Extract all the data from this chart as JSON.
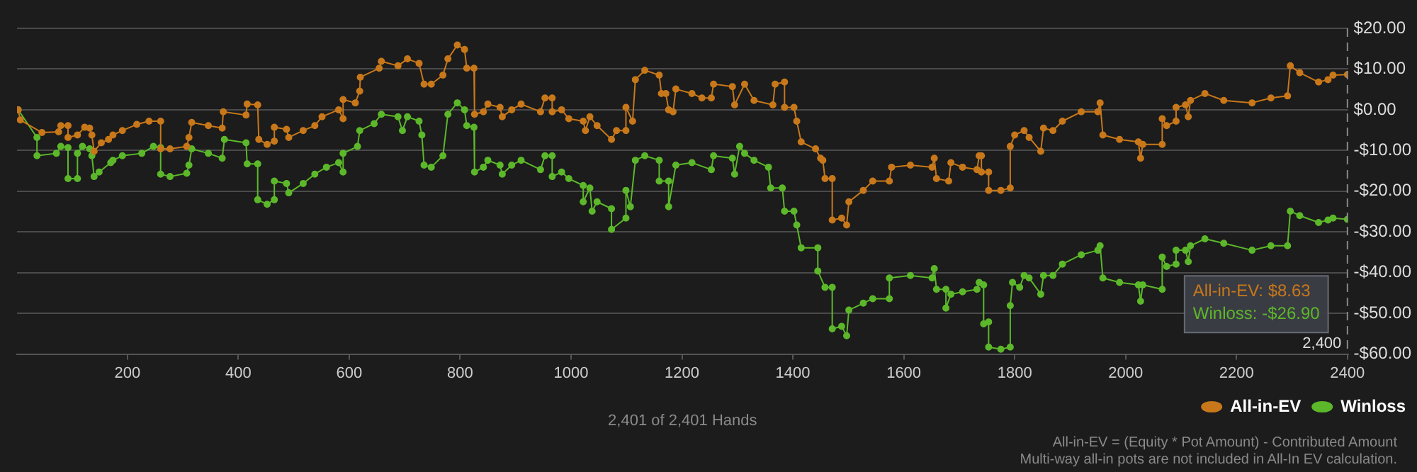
{
  "chart_data": {
    "type": "line",
    "xlabel": "2,401 of 2,401 Hands",
    "xlim": [
      1,
      2401
    ],
    "xticks": [
      200,
      400,
      600,
      800,
      1000,
      1200,
      1400,
      1600,
      1800,
      2000,
      2200,
      2400
    ],
    "ylim": [
      -60,
      20
    ],
    "yticks": [
      {
        "value": 20,
        "label": "$20.00"
      },
      {
        "value": 10,
        "label": "$10.00"
      },
      {
        "value": 0,
        "label": "$0.00"
      },
      {
        "value": -10,
        "label": "-$10.00"
      },
      {
        "value": -20,
        "label": "-$20.00"
      },
      {
        "value": -30,
        "label": "-$30.00"
      },
      {
        "value": -40,
        "label": "-$40.00"
      },
      {
        "value": -50,
        "label": "-$50.00"
      },
      {
        "value": -60,
        "label": "-$60.00"
      }
    ],
    "grid": "y",
    "legend": "bottom right",
    "marker": "circle",
    "line_style": "solid",
    "ref_lines": [
      {
        "axis": "x",
        "value": 2400,
        "label": "2,400",
        "line_style": "dashed",
        "color": "#888888"
      }
    ],
    "annotations": [
      "All-in-EV: $8.63",
      "Winloss: -$26.90",
      "All-in-EV = (Equity * Pot Amount) - Contributed Amount",
      "Multi-way all-in pots are not included in All-In EV calculation."
    ],
    "series": [
      {
        "name": "All-in-EV",
        "color": "#c8781a",
        "x": [
          3,
          7,
          46,
          76,
          80,
          93,
          93,
          110,
          123,
          132,
          136,
          140,
          153,
          166,
          174,
          191,
          217,
          239,
          260,
          260,
          277,
          307,
          311,
          316,
          346,
          371,
          373,
          414,
          416,
          435,
          437,
          452,
          465,
          465,
          487,
          491,
          517,
          538,
          551,
          581,
          589,
          589,
          611,
          619,
          620,
          654,
          658,
          688,
          705,
          726,
          735,
          748,
          769,
          778,
          795,
          808,
          812,
          825,
          826,
          842,
          850,
          872,
          876,
          893,
          910,
          945,
          953,
          966,
          966,
          983,
          996,
          1022,
          1026,
          1034,
          1047,
          1073,
          1082,
          1099,
          1099,
          1111,
          1116,
          1133,
          1159,
          1163,
          1171,
          1176,
          1184,
          1189,
          1218,
          1236,
          1253,
          1257,
          1291,
          1295,
          1313,
          1330,
          1364,
          1368,
          1385,
          1385,
          1402,
          1407,
          1415,
          1441,
          1450,
          1454,
          1458,
          1471,
          1471,
          1488,
          1497,
          1501,
          1527,
          1544,
          1574,
          1578,
          1612,
          1651,
          1655,
          1659,
          1681,
          1685,
          1706,
          1732,
          1736,
          1740,
          1740,
          1753,
          1753,
          1775,
          1792,
          1792,
          1800,
          1817,
          1826,
          1847,
          1852,
          1869,
          1886,
          1920,
          1950,
          1954,
          1959,
          1989,
          2023,
          2027,
          2031,
          2066,
          2066,
          2074,
          2091,
          2091,
          2108,
          2113,
          2117,
          2143,
          2177,
          2228,
          2262,
          2292,
          2297,
          2314,
          2348,
          2365,
          2374,
          2400
        ],
        "values": [
          0,
          -2.5,
          -5.6,
          -5.4,
          -3.9,
          -3.9,
          -6.8,
          -6.2,
          -4.3,
          -4.5,
          -6.2,
          -10.2,
          -8.1,
          -7.3,
          -6.2,
          -5.1,
          -3.6,
          -2.8,
          -2.8,
          -9.6,
          -9.6,
          -9,
          -6.8,
          -3.1,
          -3.9,
          -4.5,
          -0.5,
          -1.3,
          1.4,
          1.2,
          -7.3,
          -8.5,
          -7.7,
          -4.3,
          -4.8,
          -6.8,
          -5.1,
          -3.9,
          -1.7,
          0,
          -2.2,
          2.5,
          1.7,
          4.6,
          8,
          10.2,
          11.9,
          10.8,
          12.5,
          11.4,
          6.3,
          6.3,
          8.5,
          12.5,
          15.9,
          14.8,
          10.2,
          10.2,
          -1.1,
          -0.5,
          1.4,
          0.6,
          -1.7,
          0,
          1.4,
          -0.5,
          2.9,
          2.9,
          -0.5,
          0,
          -2.2,
          -2.8,
          -5.1,
          -1.7,
          -3.9,
          -7.3,
          -5.1,
          -5.1,
          0.6,
          -2.8,
          7.4,
          9.7,
          8.5,
          4,
          4,
          0,
          -0.5,
          5.1,
          4,
          2.9,
          2.9,
          6.3,
          5.7,
          1.2,
          6.3,
          2.3,
          1.2,
          6.3,
          6.8,
          0.6,
          0.6,
          -2.8,
          -7.9,
          -9.6,
          -11.9,
          -12.4,
          -16.9,
          -16.9,
          -27.1,
          -26.6,
          -28.3,
          -22.6,
          -19.8,
          -17.5,
          -17.5,
          -14.1,
          -13.6,
          -14.1,
          -11.9,
          -16.9,
          -17.5,
          -13,
          -14.1,
          -14.7,
          -11.3,
          -11.3,
          -15.3,
          -15.3,
          -19.8,
          -19.8,
          -19.2,
          -9,
          -6.2,
          -5.1,
          -6.8,
          -10.2,
          -4.5,
          -5.1,
          -2.8,
          -0.5,
          -0.5,
          1.7,
          -6.2,
          -7.3,
          -7.9,
          -11.9,
          -8.5,
          -8.5,
          -2.2,
          -3.9,
          -2.8,
          0.6,
          1.2,
          -1.7,
          2.3,
          4,
          2.3,
          1.7,
          2.9,
          3.4,
          10.8,
          9.1,
          6.8,
          7.4,
          8.5,
          8.63
        ]
      },
      {
        "name": "Winloss",
        "color": "#5cb82a",
        "x": [
          3,
          37,
          37,
          72,
          80,
          93,
          93,
          110,
          110,
          119,
          132,
          136,
          140,
          149,
          170,
          174,
          191,
          226,
          247,
          260,
          260,
          277,
          307,
          311,
          316,
          346,
          371,
          375,
          414,
          416,
          435,
          435,
          452,
          465,
          465,
          487,
          491,
          517,
          538,
          559,
          581,
          589,
          589,
          615,
          619,
          645,
          658,
          688,
          696,
          705,
          726,
          731,
          735,
          748,
          769,
          778,
          795,
          808,
          812,
          825,
          826,
          842,
          850,
          872,
          876,
          893,
          910,
          945,
          953,
          966,
          966,
          983,
          996,
          1022,
          1022,
          1034,
          1038,
          1047,
          1073,
          1073,
          1099,
          1099,
          1107,
          1116,
          1133,
          1159,
          1159,
          1176,
          1176,
          1189,
          1218,
          1253,
          1257,
          1291,
          1295,
          1304,
          1313,
          1330,
          1356,
          1360,
          1381,
          1385,
          1402,
          1407,
          1415,
          1445,
          1445,
          1458,
          1471,
          1471,
          1488,
          1497,
          1501,
          1527,
          1544,
          1574,
          1574,
          1612,
          1651,
          1655,
          1659,
          1676,
          1676,
          1685,
          1706,
          1732,
          1736,
          1744,
          1744,
          1753,
          1753,
          1775,
          1792,
          1792,
          1796,
          1809,
          1817,
          1826,
          1847,
          1852,
          1869,
          1886,
          1920,
          1950,
          1954,
          1959,
          1989,
          2023,
          2027,
          2031,
          2066,
          2066,
          2074,
          2091,
          2091,
          2108,
          2113,
          2117,
          2143,
          2177,
          2228,
          2262,
          2292,
          2297,
          2314,
          2348,
          2365,
          2374,
          2400
        ],
        "values": [
          0,
          -6.8,
          -11.3,
          -10.7,
          -9,
          -9.3,
          -16.9,
          -16.9,
          -10.7,
          -9,
          -9.6,
          -11.3,
          -16.4,
          -15.3,
          -13,
          -12.4,
          -11.3,
          -10.7,
          -9,
          -9.3,
          -15.8,
          -16.4,
          -15.6,
          -13.6,
          -9.6,
          -10.7,
          -11.9,
          -7.3,
          -8.1,
          -13.3,
          -13.3,
          -22.1,
          -23.2,
          -22.1,
          -17.5,
          -18.1,
          -20.4,
          -18.1,
          -15.8,
          -14.1,
          -13,
          -15.3,
          -10.7,
          -9,
          -5.1,
          -3.4,
          -1.1,
          -1.7,
          -5.1,
          -1.7,
          -2.8,
          -6.2,
          -13.6,
          -14.1,
          -11.3,
          -1.1,
          1.7,
          0,
          -3.9,
          -4.3,
          -15.3,
          -14.1,
          -12.4,
          -13.6,
          -15.8,
          -13.6,
          -12.4,
          -14.7,
          -11.3,
          -11.3,
          -16.4,
          -15.3,
          -16.9,
          -18.6,
          -22.6,
          -19.2,
          -24.9,
          -22.6,
          -24.3,
          -29.4,
          -26.6,
          -19.8,
          -23.8,
          -12.4,
          -11.3,
          -12.4,
          -17.5,
          -17.5,
          -23.8,
          -13.6,
          -13,
          -14.7,
          -11.3,
          -11.9,
          -15.8,
          -9,
          -10.7,
          -12.4,
          -14.1,
          -19.2,
          -19.2,
          -24.9,
          -24.9,
          -28.3,
          -33.9,
          -33.9,
          -39.6,
          -43.6,
          -43.6,
          -53.8,
          -53.2,
          -55.5,
          -49.2,
          -47.5,
          -46.4,
          -46.4,
          -41.3,
          -40.7,
          -41.3,
          -39,
          -44.1,
          -44.1,
          -48.7,
          -45.3,
          -44.7,
          -44.1,
          -42.4,
          -43,
          -52.6,
          -52.1,
          -58.3,
          -58.8,
          -58.3,
          -48.1,
          -42.4,
          -43.6,
          -40.7,
          -41.3,
          -45.3,
          -40.7,
          -40.7,
          -37.9,
          -35.6,
          -34.5,
          -33.4,
          -41.3,
          -42.4,
          -43,
          -47,
          -43,
          -44.1,
          -36.2,
          -38.5,
          -37.9,
          -34.5,
          -34.5,
          -37.3,
          -33.4,
          -31.7,
          -32.8,
          -34.5,
          -33.4,
          -33.4,
          -24.9,
          -26,
          -27.7,
          -27.1,
          -26.6,
          -26.9
        ]
      }
    ]
  }
}
